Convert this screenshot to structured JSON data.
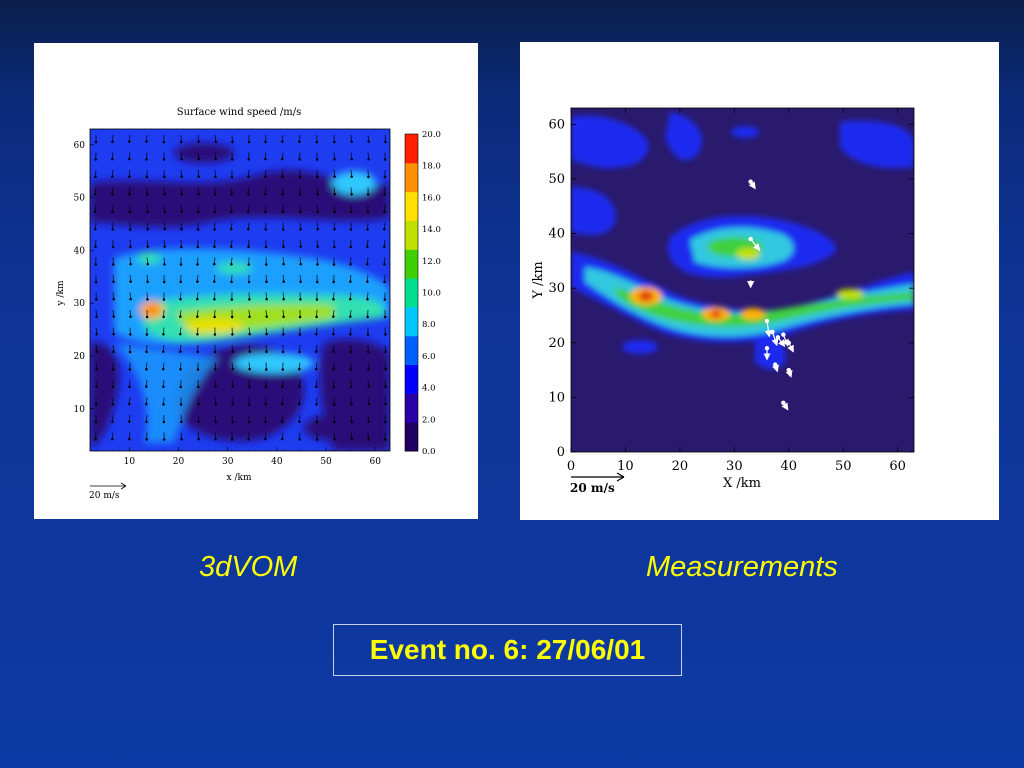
{
  "captions": {
    "left": "3dVOM",
    "right": "Measurements"
  },
  "event_label": "Event no. 6: 27/06/01",
  "colors": {
    "accent_text": "#ffff00",
    "background": "#0e3aa5"
  },
  "chart_data": [
    {
      "type": "heatmap",
      "title": "Surface wind speed /m/s",
      "xlabel": "x /km",
      "ylabel": "y /km",
      "xlim": [
        2,
        63
      ],
      "ylim": [
        2,
        63
      ],
      "x_ticks": [
        10,
        20,
        30,
        40,
        50,
        60
      ],
      "y_ticks": [
        10,
        20,
        30,
        40,
        50,
        60
      ],
      "vector_scale_label": "20 m/s",
      "colorbar": {
        "min": 0.0,
        "max": 20.0,
        "tick_labels": [
          "0.0",
          "2.0",
          "4.0",
          "6.0",
          "8.0",
          "10.0",
          "12.0",
          "14.0",
          "16.0",
          "18.0",
          "20.0"
        ],
        "colormap": [
          "#200060",
          "#2a00a8",
          "#0000ff",
          "#0060ff",
          "#00c8ff",
          "#00e090",
          "#40d000",
          "#c0e000",
          "#ffe000",
          "#ff9000",
          "#ff2000"
        ]
      },
      "features": [
        {
          "name": "main wind band",
          "x_range": [
            15,
            60
          ],
          "y_range": [
            22,
            31
          ],
          "peak_speed": 18
        },
        {
          "name": "northern band",
          "x_range": [
            10,
            40
          ],
          "y_range": [
            34,
            42
          ],
          "peak_speed": 8
        },
        {
          "name": "south-west branch",
          "x_range": [
            8,
            25
          ],
          "y_range": [
            5,
            22
          ],
          "peak_speed": 6
        }
      ]
    },
    {
      "type": "heatmap",
      "title": "",
      "xlabel": "X /km",
      "ylabel": "Y /km",
      "xlim": [
        0,
        63
      ],
      "ylim": [
        0,
        63
      ],
      "x_ticks": [
        "0",
        "10",
        "20",
        "30",
        "40",
        "50",
        "60"
      ],
      "y_ticks": [
        "0",
        "10",
        "20",
        "30",
        "40",
        "50",
        "60"
      ],
      "vector_scale_label": "20 m/s",
      "features": [
        {
          "name": "main wind band",
          "x_range": [
            0,
            63
          ],
          "y_range": [
            22,
            35
          ],
          "peak_speed": 18
        },
        {
          "name": "northern blob",
          "x_range": [
            18,
            48
          ],
          "y_range": [
            34,
            42
          ],
          "peak_speed": 12
        }
      ],
      "measured_vectors": [
        {
          "x": 33,
          "y": 49.5,
          "u": 2,
          "v": -3
        },
        {
          "x": 33,
          "y": 39,
          "u": 4,
          "v": -5
        },
        {
          "x": 33,
          "y": 31,
          "u": 0,
          "v": -2
        },
        {
          "x": 36,
          "y": 24,
          "u": 1,
          "v": -7
        },
        {
          "x": 37,
          "y": 22,
          "u": 2,
          "v": -6
        },
        {
          "x": 38,
          "y": 21,
          "u": 3,
          "v": -4
        },
        {
          "x": 39,
          "y": 21.5,
          "u": 2,
          "v": -5
        },
        {
          "x": 40,
          "y": 20,
          "u": 2,
          "v": -4
        },
        {
          "x": 36,
          "y": 19,
          "u": 0,
          "v": -5
        },
        {
          "x": 37.5,
          "y": 16,
          "u": 1,
          "v": -3
        },
        {
          "x": 40,
          "y": 15,
          "u": 1,
          "v": -3
        },
        {
          "x": 39,
          "y": 9,
          "u": 2,
          "v": -3
        }
      ]
    }
  ]
}
